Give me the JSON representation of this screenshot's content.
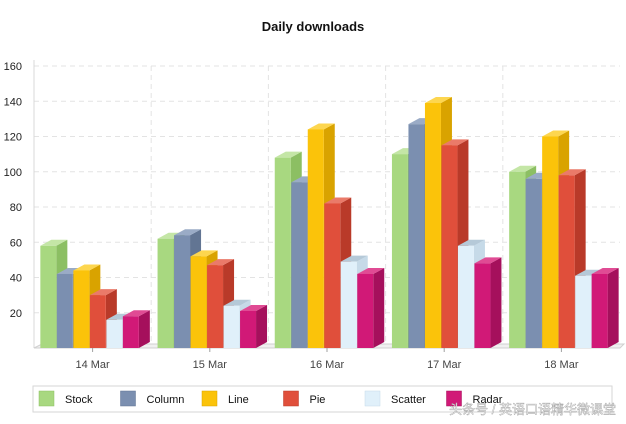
{
  "chart_data": {
    "type": "bar",
    "title": "Daily downloads",
    "xlabel": "",
    "ylabel": "",
    "categories": [
      "14 Mar",
      "15 Mar",
      "16 Mar",
      "17 Mar",
      "18 Mar"
    ],
    "ylim": [
      0,
      160
    ],
    "yticks": [
      20,
      40,
      60,
      80,
      100,
      120,
      140,
      160
    ],
    "grid": true,
    "legend_position": "bottom",
    "series": [
      {
        "name": "Stock",
        "color": "#a8d880",
        "side": "#8cbf63",
        "top": "#c4e6a6",
        "values": [
          58,
          62,
          108,
          110,
          100
        ]
      },
      {
        "name": "Column",
        "color": "#7b8fb0",
        "side": "#627593",
        "top": "#9aabc6",
        "values": [
          42,
          64,
          94,
          127,
          96
        ]
      },
      {
        "name": "Line",
        "color": "#fbc30a",
        "side": "#d9a300",
        "top": "#fdd64f",
        "values": [
          44,
          52,
          124,
          139,
          120
        ]
      },
      {
        "name": "Pie",
        "color": "#e04f3b",
        "side": "#b93a29",
        "top": "#ea7a69",
        "values": [
          30,
          47,
          82,
          115,
          98
        ]
      },
      {
        "name": "Scatter",
        "color": "#e0f0fa",
        "side": "#c6dae8",
        "top": "#b5c9d8",
        "values": [
          16,
          24,
          49,
          58,
          41
        ]
      },
      {
        "name": "Radar",
        "color": "#d11977",
        "side": "#a5105c",
        "top": "#e04b94",
        "values": [
          18,
          21,
          42,
          48,
          42
        ]
      }
    ]
  },
  "watermark": "头条号 / 英语口语精华微课堂"
}
